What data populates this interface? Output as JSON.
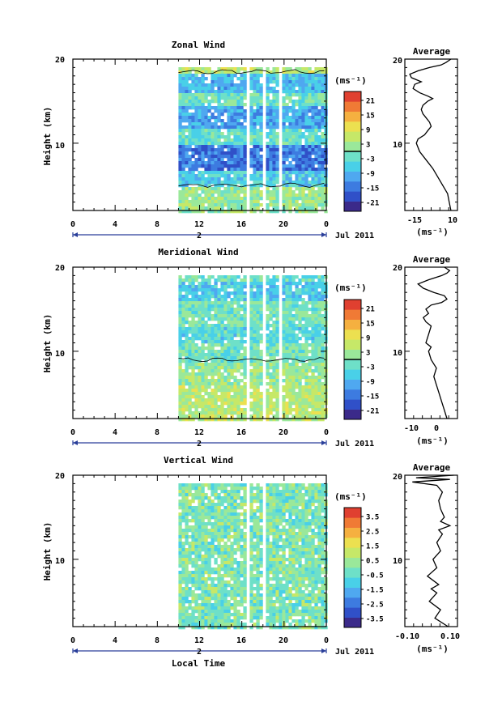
{
  "panels": [
    {
      "title": "Zonal Wind",
      "ylabel": "Height (km)",
      "yticks": [
        10,
        20
      ],
      "xticks": [
        "0",
        "4",
        "8",
        "12",
        "16",
        "20",
        "0"
      ],
      "day_label": "2",
      "month_label": "Jul 2011",
      "colorbar": {
        "unit": "(ms⁻¹)",
        "labels": [
          "21",
          "15",
          "9",
          "3",
          "-3",
          "-9",
          "-15",
          "-21"
        ],
        "marker_value": "0"
      },
      "average": {
        "title": "Average",
        "xticks": [
          "-15",
          "10"
        ],
        "yticks": [
          "10",
          "20"
        ],
        "xlabel": "(ms⁻¹)"
      }
    },
    {
      "title": "Meridional Wind",
      "ylabel": "Height (km)",
      "yticks": [
        10,
        20
      ],
      "xticks": [
        "0",
        "4",
        "8",
        "12",
        "16",
        "20",
        "0"
      ],
      "day_label": "2",
      "month_label": "Jul 2011",
      "colorbar": {
        "unit": "(ms⁻¹)",
        "labels": [
          "21",
          "15",
          "9",
          "3",
          "-3",
          "-9",
          "-15",
          "-21"
        ],
        "marker_value": "0"
      },
      "average": {
        "title": "Average",
        "xticks": [
          "-10",
          "0"
        ],
        "yticks": [
          "10",
          "20"
        ],
        "xlabel": "(ms⁻¹)"
      }
    },
    {
      "title": "Vertical Wind",
      "ylabel": "Height (km)",
      "yticks": [
        10,
        20
      ],
      "xticks": [
        "0",
        "4",
        "8",
        "12",
        "16",
        "20",
        "0"
      ],
      "day_label": "2",
      "month_label": "Jul 2011",
      "colorbar": {
        "unit": "(ms⁻¹)",
        "labels": [
          "3.5",
          "2.5",
          "1.5",
          "0.5",
          "-0.5",
          "-1.5",
          "-2.5",
          "-3.5"
        ]
      },
      "average": {
        "title": "Average",
        "xticks": [
          "-0.10",
          "0.10"
        ],
        "yticks": [
          "10",
          "20"
        ],
        "xlabel": "(ms⁻¹)"
      }
    }
  ],
  "xlabel": "Local Time",
  "colors": {
    "scale": [
      "#3b2a8a",
      "#3050c8",
      "#3d7be0",
      "#4fa8f0",
      "#49d0e8",
      "#6ee0c8",
      "#9ae89a",
      "#c6e868",
      "#ece050",
      "#f5b040",
      "#f07a35",
      "#e04030"
    ]
  },
  "chart_data": [
    {
      "type": "heatmap",
      "title": "Zonal Wind",
      "ylabel": "Height (km)",
      "x_range_hours": [
        0,
        24
      ],
      "y_range_km": [
        2,
        20
      ],
      "data_coverage_hours": [
        10,
        24
      ],
      "gaps_hours": [
        [
          16.3,
          16.6
        ],
        [
          17.7,
          18
        ],
        [
          19.3,
          19.6
        ]
      ],
      "colorbar_range": [
        -24,
        24
      ],
      "layers": [
        {
          "z_km": [
            2,
            5
          ],
          "wind_ms": 2
        },
        {
          "z_km": [
            5,
            7
          ],
          "wind_ms": -6
        },
        {
          "z_km": [
            7,
            10
          ],
          "wind_ms": -14
        },
        {
          "z_km": [
            10,
            12
          ],
          "wind_ms": -3
        },
        {
          "z_km": [
            12,
            14.5
          ],
          "wind_ms": -10
        },
        {
          "z_km": [
            14.5,
            16
          ],
          "wind_ms": -1
        },
        {
          "z_km": [
            16,
            18.5
          ],
          "wind_ms": -8
        },
        {
          "z_km": [
            18.5,
            19.3
          ],
          "wind_ms": 5
        }
      ]
    },
    {
      "type": "line",
      "title": "Average",
      "xlabel": "(ms⁻¹)",
      "xlim": [
        -20,
        12
      ],
      "ylim": [
        2,
        20
      ],
      "series": [
        {
          "x": [
            8,
            7,
            6,
            3,
            0,
            -3,
            -7,
            -11,
            -13,
            -12,
            -8,
            -6,
            -4,
            -5,
            -7,
            -9,
            -10,
            -9,
            -6,
            -3,
            -6,
            -11,
            -15,
            -14,
            -10,
            -16,
            -17,
            -12,
            -5,
            2,
            5,
            8
          ],
          "y": [
            2,
            3,
            4,
            5,
            6,
            7,
            8,
            9,
            10,
            10.5,
            11,
            11.5,
            12,
            12.5,
            13,
            13.5,
            14,
            14.5,
            15,
            15.3,
            15.6,
            16,
            16.5,
            17,
            17.3,
            17.8,
            18.2,
            18.6,
            19,
            19.3,
            19.6,
            20
          ]
        }
      ]
    },
    {
      "type": "heatmap",
      "title": "Meridional Wind",
      "ylabel": "Height (km)",
      "x_range_hours": [
        0,
        24
      ],
      "y_range_km": [
        2,
        20
      ],
      "data_coverage_hours": [
        10,
        24
      ],
      "gaps_hours": [
        [
          16.3,
          16.6
        ],
        [
          17.7,
          18
        ],
        [
          19.3,
          19.6
        ]
      ],
      "colorbar_range": [
        -24,
        24
      ],
      "layers": [
        {
          "z_km": [
            2,
            6
          ],
          "wind_ms": 5
        },
        {
          "z_km": [
            6,
            9
          ],
          "wind_ms": 2
        },
        {
          "z_km": [
            9,
            11
          ],
          "wind_ms": -1
        },
        {
          "z_km": [
            11,
            13
          ],
          "wind_ms": -4
        },
        {
          "z_km": [
            13,
            16
          ],
          "wind_ms": -1
        },
        {
          "z_km": [
            16,
            18.5
          ],
          "wind_ms": -6
        },
        {
          "z_km": [
            18.5,
            19.3
          ],
          "wind_ms": -2
        }
      ]
    },
    {
      "type": "line",
      "title": "Average",
      "xlabel": "(ms⁻¹)",
      "xlim": [
        -13,
        7
      ],
      "ylim": [
        2,
        20
      ],
      "series": [
        {
          "x": [
            3,
            2,
            1,
            0,
            -1,
            -2,
            -1,
            -3,
            -4,
            -3,
            -5,
            -4,
            -3,
            -5,
            -6,
            -4,
            -5,
            -3,
            1,
            3,
            2,
            -2,
            -6,
            -8,
            -4,
            1,
            3,
            4,
            2
          ],
          "y": [
            2,
            3,
            4,
            5,
            6,
            7,
            8,
            9,
            10,
            10.5,
            11,
            12,
            13,
            13.5,
            14,
            14.5,
            15,
            15.5,
            15.8,
            16.2,
            16.6,
            17,
            17.5,
            18,
            18.5,
            19,
            19.3,
            19.6,
            20
          ]
        }
      ]
    },
    {
      "type": "heatmap",
      "title": "Vertical Wind",
      "ylabel": "Height (km)",
      "x_range_hours": [
        0,
        24
      ],
      "y_range_km": [
        2,
        20
      ],
      "data_coverage_hours": [
        10,
        24
      ],
      "gaps_hours": [
        [
          16.3,
          16.6
        ],
        [
          17.7,
          18
        ]
      ],
      "colorbar_range": [
        -4,
        4
      ],
      "layers": [
        {
          "z_km": [
            2,
            20
          ],
          "wind_ms": 0
        }
      ]
    },
    {
      "type": "line",
      "title": "Average",
      "xlabel": "(ms⁻¹)",
      "xlim": [
        -0.14,
        0.14
      ],
      "ylim": [
        2,
        20
      ],
      "series": [
        {
          "x": [
            0.09,
            0.02,
            0.05,
            -0.01,
            0.03,
            0.0,
            0.04,
            -0.02,
            0.03,
            0.01,
            0.05,
            0.03,
            0.06,
            0.04,
            0.1,
            0.05,
            0.07,
            0.05,
            0.04,
            0.06,
            0.03,
            -0.1,
            0.1,
            -0.08,
            0.12
          ],
          "y": [
            2,
            3,
            4,
            5,
            6,
            6.5,
            7,
            8,
            9,
            10,
            11,
            12,
            13,
            13.5,
            14,
            14.5,
            15,
            16,
            17,
            18,
            18.8,
            19.2,
            19.5,
            19.7,
            20
          ]
        }
      ]
    }
  ]
}
